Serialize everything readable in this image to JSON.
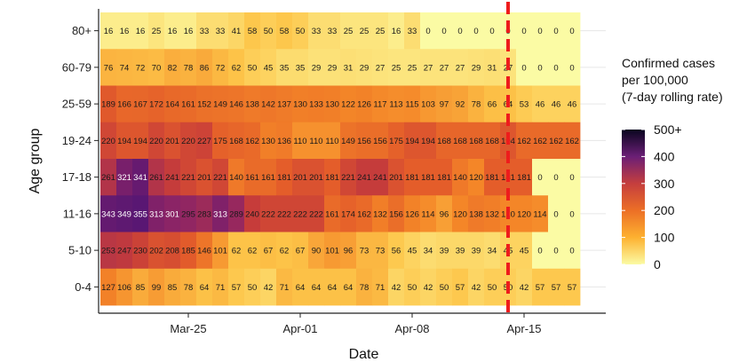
{
  "chart_data": {
    "type": "heatmap",
    "xlabel": "Date",
    "ylabel": "Age group",
    "x_ticks": [
      "Mar-25",
      "Apr-01",
      "Apr-08",
      "Apr-15"
    ],
    "dates": [
      "Mar-20",
      "Mar-21",
      "Mar-22",
      "Mar-23",
      "Mar-24",
      "Mar-25",
      "Mar-26",
      "Mar-27",
      "Mar-28",
      "Mar-29",
      "Mar-30",
      "Mar-31",
      "Apr-01",
      "Apr-02",
      "Apr-03",
      "Apr-04",
      "Apr-05",
      "Apr-06",
      "Apr-07",
      "Apr-08",
      "Apr-09",
      "Apr-10",
      "Apr-11",
      "Apr-12",
      "Apr-13",
      "Apr-14",
      "Apr-15",
      "Apr-16",
      "Apr-17",
      "Apr-18",
      "Apr-19"
    ],
    "age_groups": [
      "80+",
      "60-79",
      "25-59",
      "19-24",
      "17-18",
      "11-16",
      "5-10",
      "0-4"
    ],
    "values": [
      [
        16,
        16,
        16,
        25,
        16,
        16,
        33,
        33,
        41,
        58,
        50,
        58,
        50,
        33,
        33,
        25,
        25,
        25,
        16,
        33,
        0,
        0,
        0,
        0,
        0,
        0,
        0,
        0,
        0,
        0,
        0
      ],
      [
        76,
        74,
        72,
        70,
        82,
        78,
        86,
        72,
        62,
        50,
        45,
        35,
        35,
        29,
        29,
        31,
        29,
        27,
        25,
        25,
        27,
        27,
        27,
        29,
        31,
        27,
        0,
        0,
        0,
        0,
        0
      ],
      [
        189,
        166,
        167,
        172,
        164,
        161,
        152,
        149,
        146,
        138,
        142,
        137,
        130,
        133,
        130,
        122,
        126,
        117,
        113,
        115,
        103,
        97,
        92,
        78,
        66,
        64,
        53,
        46,
        46,
        46,
        46
      ],
      [
        220,
        194,
        194,
        220,
        201,
        220,
        227,
        175,
        168,
        162,
        130,
        136,
        110,
        110,
        110,
        149,
        156,
        156,
        175,
        194,
        194,
        168,
        168,
        168,
        168,
        194,
        162,
        162,
        162,
        162,
        162
      ],
      [
        261,
        321,
        341,
        261,
        241,
        221,
        201,
        221,
        140,
        161,
        161,
        181,
        201,
        201,
        181,
        221,
        241,
        241,
        201,
        181,
        181,
        181,
        140,
        120,
        181,
        181,
        181,
        0,
        0,
        0,
        0
      ],
      [
        343,
        349,
        355,
        313,
        301,
        295,
        283,
        313,
        289,
        240,
        222,
        222,
        222,
        222,
        161,
        174,
        162,
        132,
        156,
        126,
        114,
        96,
        120,
        138,
        132,
        120,
        120,
        114,
        0,
        0,
        0
      ],
      [
        253,
        247,
        230,
        202,
        208,
        185,
        146,
        101,
        62,
        62,
        67,
        62,
        67,
        90,
        101,
        96,
        73,
        73,
        56,
        45,
        34,
        39,
        39,
        39,
        34,
        45,
        45,
        0,
        0,
        0,
        0
      ],
      [
        127,
        106,
        85,
        99,
        85,
        78,
        64,
        71,
        57,
        50,
        42,
        71,
        64,
        64,
        64,
        64,
        78,
        71,
        42,
        50,
        42,
        50,
        57,
        42,
        50,
        50,
        42,
        57,
        57,
        57,
        57
      ]
    ],
    "visible_columns": 30,
    "vline": {
      "date": "Apr-14",
      "color": "#ee1c1c",
      "style": "dashed"
    },
    "legend": {
      "title_lines": [
        "Confirmed cases",
        "per 100,000",
        "(7-day rolling rate)"
      ],
      "ticks": [
        0,
        100,
        200,
        300,
        400,
        "500+"
      ],
      "range": [
        0,
        500
      ],
      "position": "right"
    },
    "colormap": "inferno"
  }
}
